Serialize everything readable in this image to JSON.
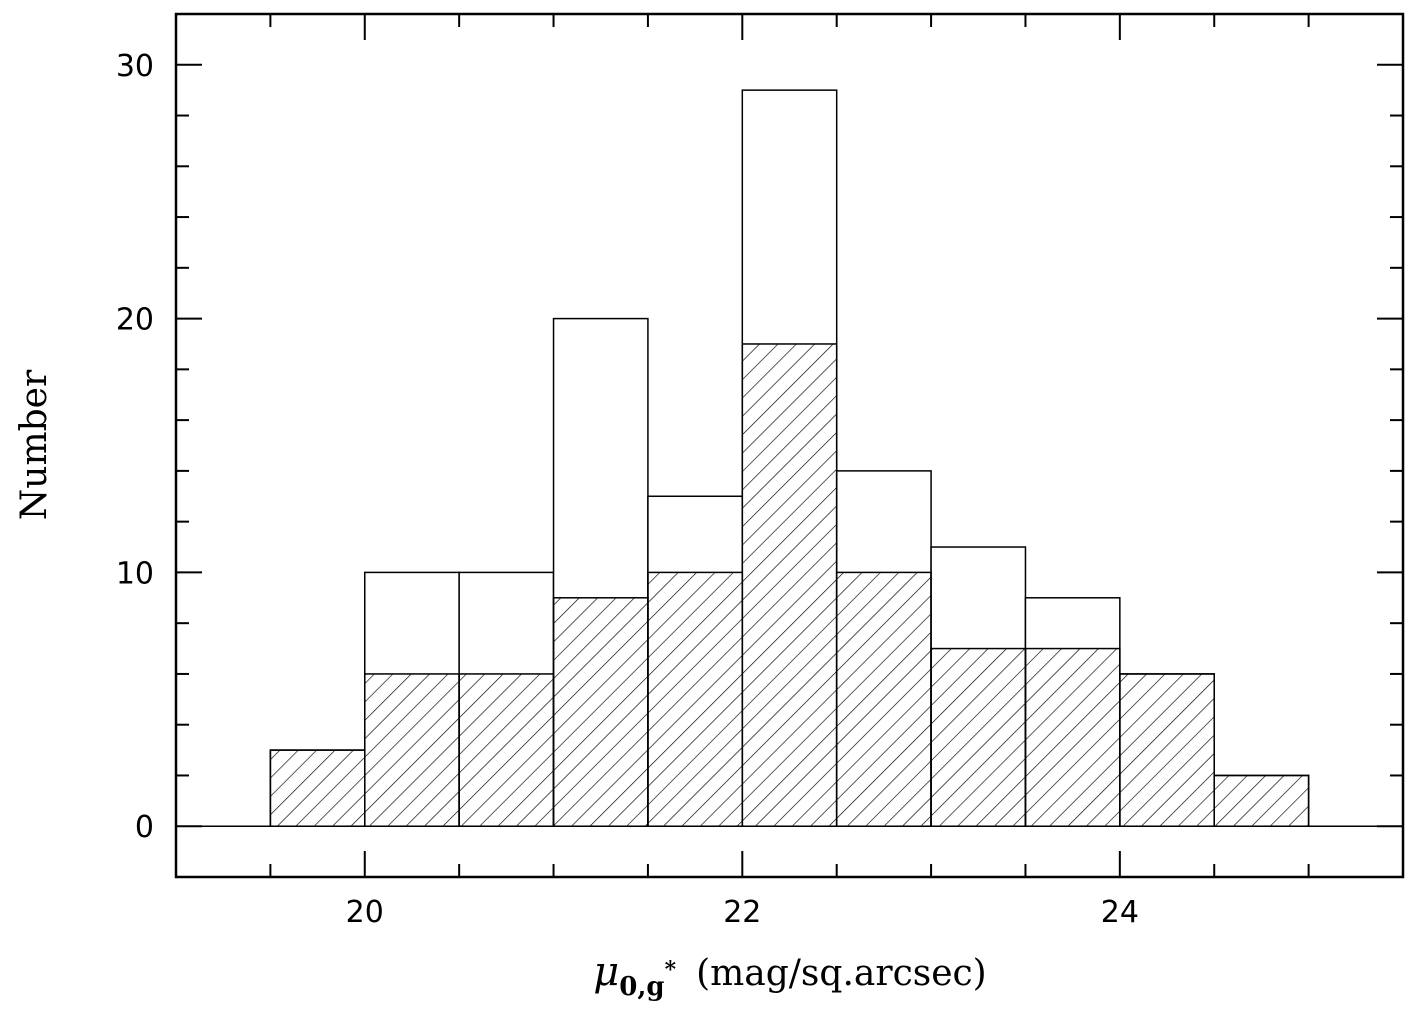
{
  "chart_data": {
    "type": "bar",
    "title": "",
    "xlabel": {
      "symbol": "μ",
      "sub_base": "0,g",
      "sub_sup": "*",
      "units": "(mag/sq.arcsec)"
    },
    "ylabel": "Number",
    "xlim": [
      19.0,
      25.5
    ],
    "ylim": [
      -2,
      32
    ],
    "x_ticks": [
      {
        "value": 20,
        "label": "20"
      },
      {
        "value": 22,
        "label": "22"
      },
      {
        "value": 24,
        "label": "24"
      }
    ],
    "x_minor_step": 0.5,
    "y_ticks": [
      {
        "value": 0,
        "label": "0"
      },
      {
        "value": 10,
        "label": "10"
      },
      {
        "value": 20,
        "label": "20"
      },
      {
        "value": 30,
        "label": "30"
      }
    ],
    "y_minor_step": 2,
    "bin_edges": [
      19.5,
      20.0,
      20.5,
      21.0,
      21.5,
      22.0,
      22.5,
      23.0,
      23.5,
      24.0,
      24.5,
      25.0
    ],
    "series": [
      {
        "style": "open",
        "values": [
          3,
          10,
          10,
          20,
          13,
          29,
          14,
          11,
          9,
          6,
          2
        ]
      },
      {
        "style": "hatched",
        "values": [
          3,
          6,
          6,
          9,
          10,
          19,
          10,
          7,
          7,
          6,
          2
        ]
      }
    ],
    "zero_line": true,
    "grid": false,
    "colors": {
      "line": "#000000",
      "background": "#ffffff"
    }
  }
}
